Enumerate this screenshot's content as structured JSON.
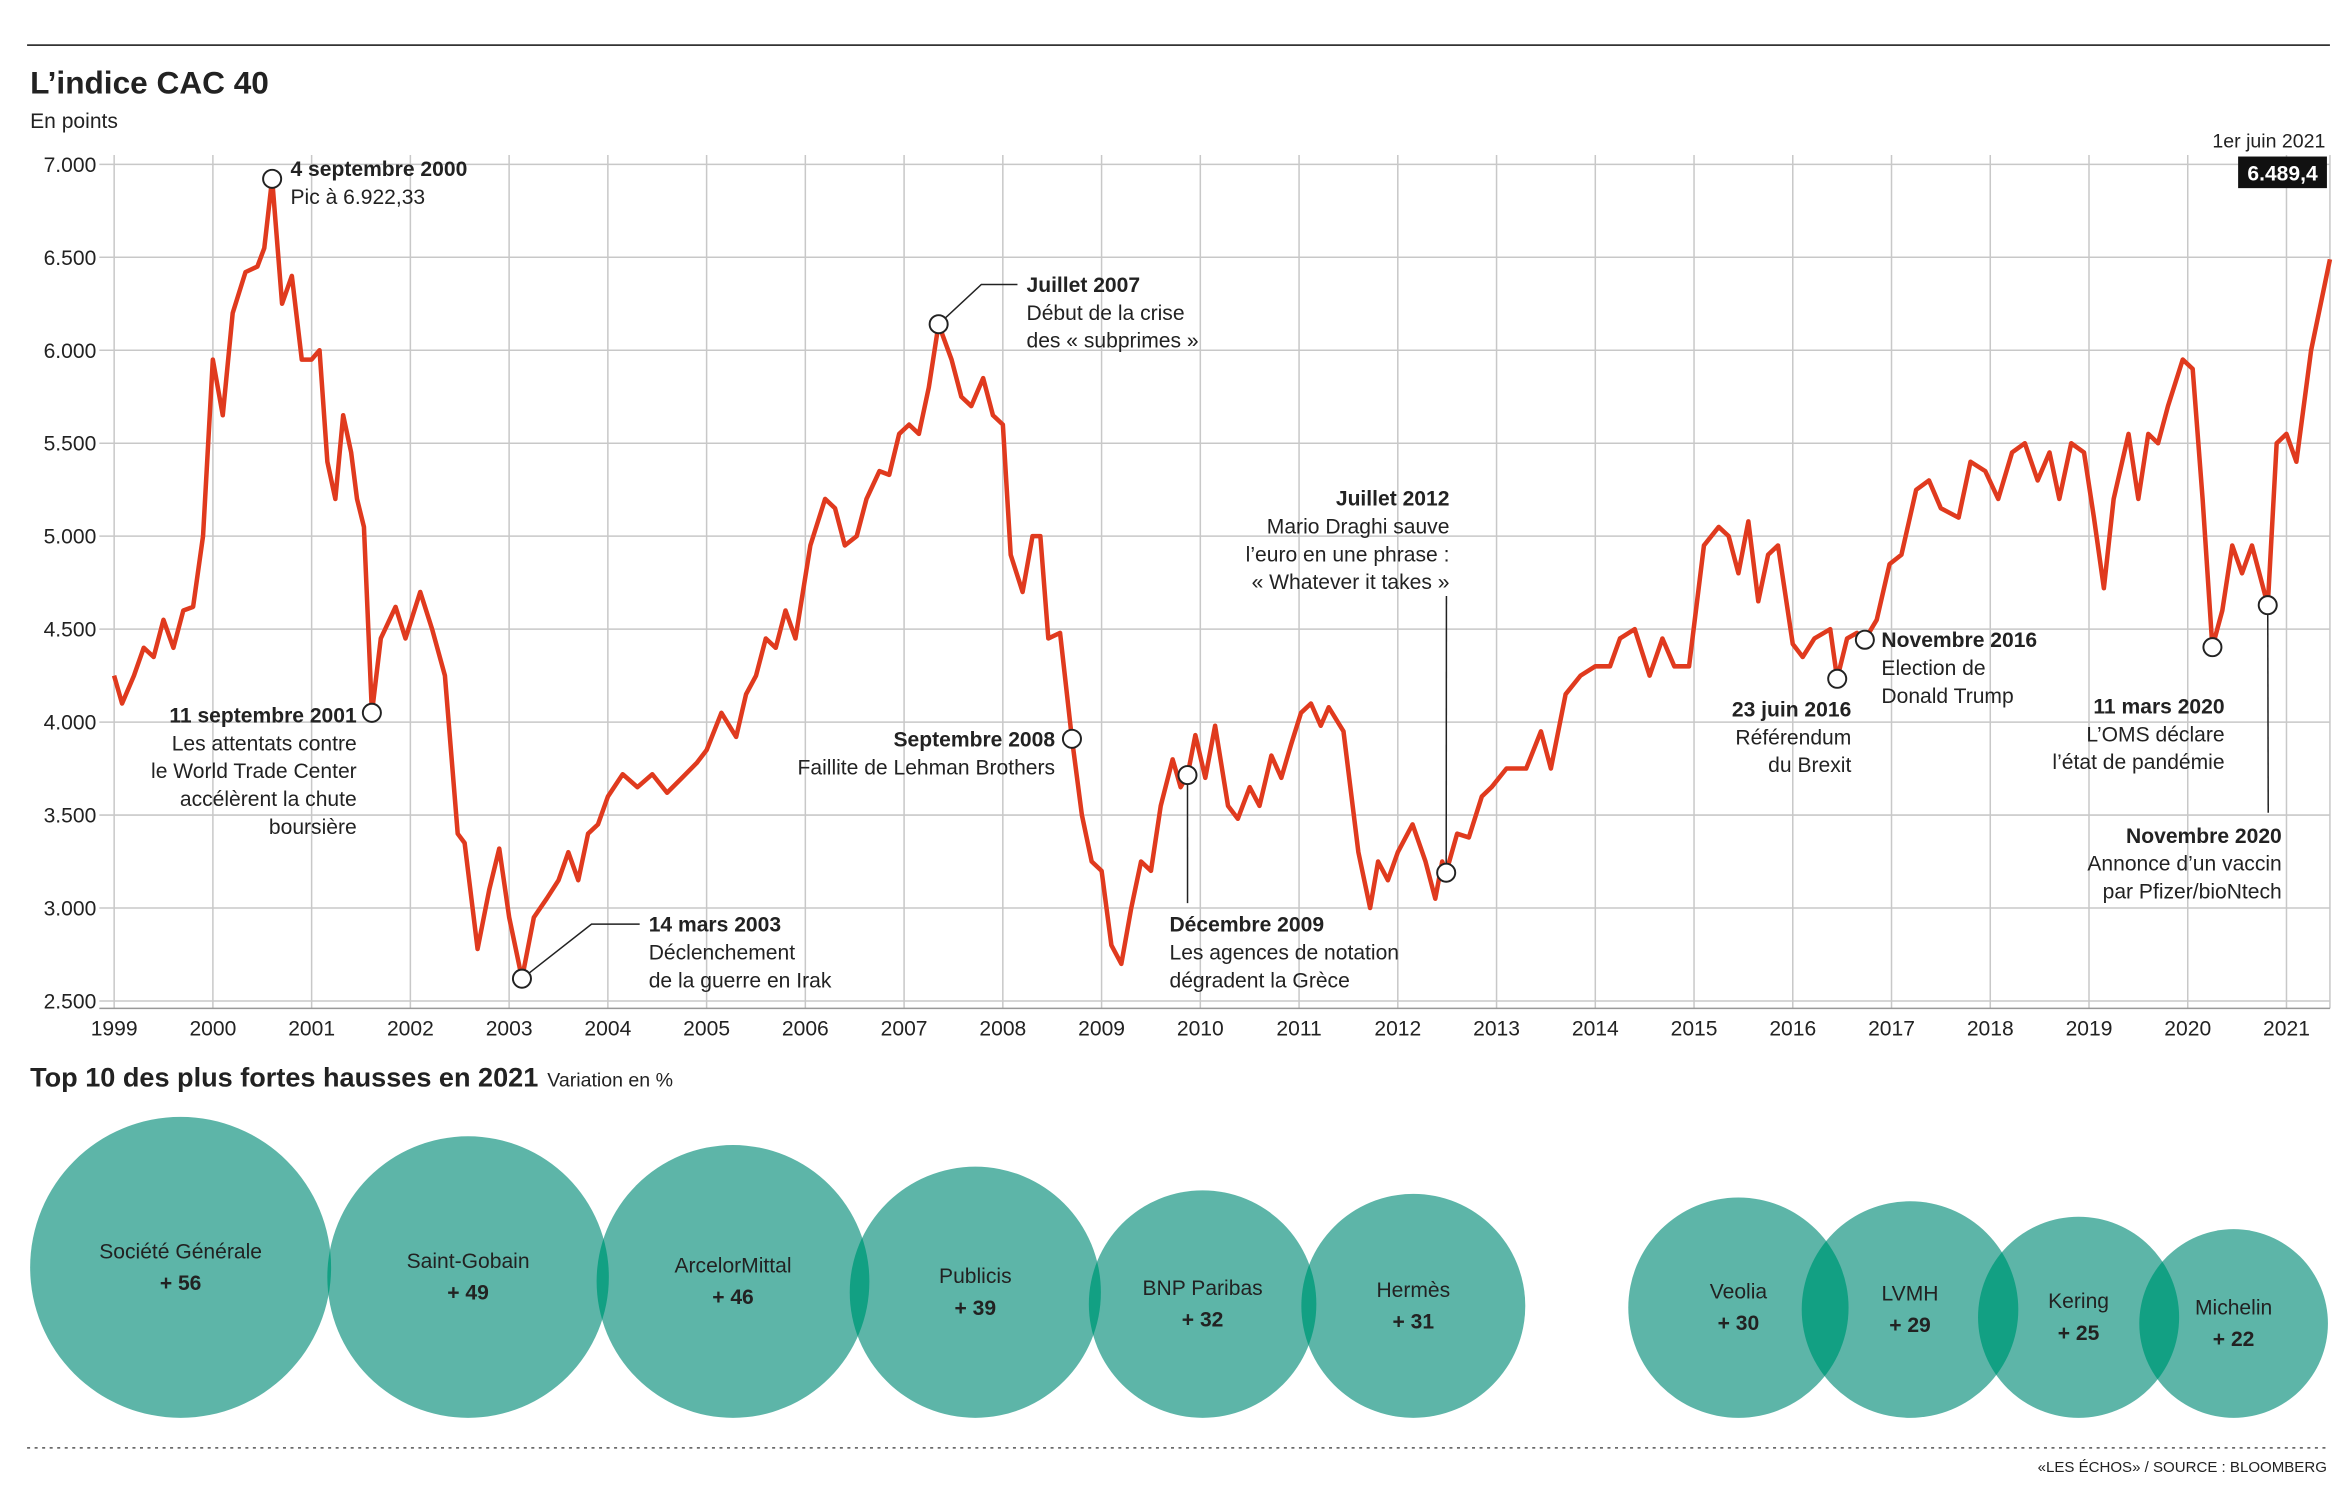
{
  "chart_data": [
    {
      "type": "line",
      "title": "L’indice CAC 40",
      "subtitle": "En points",
      "color": "#e03a1e",
      "grid": true,
      "x": [
        1999.0,
        1999.08,
        1999.2,
        1999.3,
        1999.4,
        1999.5,
        1999.6,
        1999.7,
        1999.8,
        1999.9,
        2000.0,
        2000.1,
        2000.2,
        2000.33,
        2000.45,
        2000.52,
        2000.6,
        2000.7,
        2000.8,
        2000.9,
        2001.0,
        2001.08,
        2001.16,
        2001.24,
        2001.32,
        2001.4,
        2001.46,
        2001.53,
        2001.61,
        2001.7,
        2001.85,
        2001.95,
        2002.1,
        2002.22,
        2002.35,
        2002.48,
        2002.55,
        2002.68,
        2002.8,
        2002.9,
        2003.0,
        2003.13,
        2003.25,
        2003.38,
        2003.5,
        2003.6,
        2003.7,
        2003.8,
        2003.9,
        2004.0,
        2004.15,
        2004.3,
        2004.45,
        2004.6,
        2004.75,
        2004.9,
        2005.0,
        2005.15,
        2005.3,
        2005.4,
        2005.5,
        2005.6,
        2005.7,
        2005.8,
        2005.9,
        2006.05,
        2006.2,
        2006.3,
        2006.4,
        2006.52,
        2006.62,
        2006.75,
        2006.85,
        2006.95,
        2007.05,
        2007.15,
        2007.25,
        2007.35,
        2007.48,
        2007.58,
        2007.68,
        2007.8,
        2007.9,
        2008.0,
        2008.08,
        2008.2,
        2008.3,
        2008.38,
        2008.46,
        2008.58,
        2008.7,
        2008.8,
        2008.9,
        2009.0,
        2009.1,
        2009.2,
        2009.3,
        2009.4,
        2009.5,
        2009.6,
        2009.72,
        2009.8,
        2009.87,
        2009.95,
        2010.05,
        2010.15,
        2010.28,
        2010.38,
        2010.5,
        2010.6,
        2010.72,
        2010.82,
        2010.92,
        2011.02,
        2011.12,
        2011.22,
        2011.3,
        2011.45,
        2011.6,
        2011.72,
        2011.8,
        2011.9,
        2012.0,
        2012.15,
        2012.28,
        2012.38,
        2012.45,
        2012.49,
        2012.6,
        2012.72,
        2012.85,
        2012.95,
        2013.1,
        2013.3,
        2013.45,
        2013.55,
        2013.7,
        2013.85,
        2014.0,
        2014.15,
        2014.25,
        2014.4,
        2014.55,
        2014.68,
        2014.8,
        2014.95,
        2015.1,
        2015.25,
        2015.35,
        2015.45,
        2015.55,
        2015.65,
        2015.75,
        2015.85,
        2016.0,
        2016.1,
        2016.22,
        2016.38,
        2016.45,
        2016.55,
        2016.65,
        2016.73,
        2016.85,
        2016.98,
        2017.1,
        2017.25,
        2017.38,
        2017.5,
        2017.68,
        2017.8,
        2017.95,
        2018.08,
        2018.22,
        2018.35,
        2018.48,
        2018.6,
        2018.7,
        2018.82,
        2018.95,
        2019.05,
        2019.15,
        2019.25,
        2019.4,
        2019.5,
        2019.6,
        2019.7,
        2019.8,
        2019.95,
        2020.05,
        2020.15,
        2020.25,
        2020.35,
        2020.45,
        2020.55,
        2020.65,
        2020.81,
        2020.9,
        2021.0,
        2021.1,
        2021.25,
        2021.44
      ],
      "values": [
        4250,
        4100,
        4250,
        4400,
        4350,
        4550,
        4400,
        4600,
        4620,
        5000,
        5950,
        5650,
        6200,
        6420,
        6450,
        6550,
        6922,
        6250,
        6400,
        5950,
        5950,
        6000,
        5400,
        5200,
        5650,
        5450,
        5200,
        5050,
        4050,
        4450,
        4620,
        4450,
        4700,
        4500,
        4250,
        3400,
        3350,
        2780,
        3100,
        3320,
        2950,
        2620,
        2950,
        3050,
        3150,
        3300,
        3150,
        3400,
        3450,
        3600,
        3720,
        3650,
        3720,
        3620,
        3700,
        3780,
        3850,
        4050,
        3920,
        4150,
        4250,
        4450,
        4400,
        4600,
        4450,
        4950,
        5200,
        5150,
        4950,
        5000,
        5200,
        5350,
        5330,
        5550,
        5600,
        5550,
        5800,
        6140,
        5950,
        5750,
        5700,
        5850,
        5650,
        5600,
        4900,
        4700,
        5000,
        5000,
        4450,
        4480,
        3910,
        3500,
        3250,
        3200,
        2800,
        2700,
        3000,
        3250,
        3200,
        3550,
        3800,
        3650,
        3715,
        3930,
        3700,
        3980,
        3550,
        3480,
        3650,
        3550,
        3820,
        3700,
        3880,
        4050,
        4100,
        3980,
        4080,
        3950,
        3300,
        3000,
        3250,
        3150,
        3300,
        3450,
        3250,
        3050,
        3250,
        3190,
        3400,
        3380,
        3600,
        3650,
        3750,
        3750,
        3950,
        3750,
        4150,
        4250,
        4300,
        4300,
        4450,
        4500,
        4250,
        4450,
        4300,
        4300,
        4950,
        5050,
        5000,
        4800,
        5080,
        4650,
        4900,
        4950,
        4420,
        4350,
        4450,
        4500,
        4233,
        4450,
        4480,
        4443,
        4550,
        4850,
        4900,
        5250,
        5300,
        5150,
        5100,
        5400,
        5350,
        5200,
        5450,
        5500,
        5300,
        5450,
        5200,
        5500,
        5450,
        5100,
        4720,
        5200,
        5550,
        5200,
        5550,
        5500,
        5700,
        5950,
        5900,
        5200,
        4403,
        4600,
        4950,
        4800,
        4950,
        4629,
        5500,
        5550,
        5400,
        6000,
        6489.4
      ],
      "xlim": [
        1998.85,
        2021.44
      ],
      "xticks": [
        1999,
        2000,
        2001,
        2002,
        2003,
        2004,
        2005,
        2006,
        2007,
        2008,
        2009,
        2010,
        2011,
        2012,
        2013,
        2014,
        2015,
        2016,
        2017,
        2018,
        2019,
        2020,
        2021
      ],
      "ylim": [
        2460,
        7050
      ],
      "yticks": [
        {
          "value": 2500,
          "label": "2.500"
        },
        {
          "value": 3000,
          "label": "3.000"
        },
        {
          "value": 3500,
          "label": "3.500"
        },
        {
          "value": 4000,
          "label": "4.000"
        },
        {
          "value": 4500,
          "label": "4.500"
        },
        {
          "value": 5000,
          "label": "5.000"
        },
        {
          "value": 5500,
          "label": "5.500"
        },
        {
          "value": 6000,
          "label": "6.000"
        },
        {
          "value": 6500,
          "label": "6.500"
        },
        {
          "value": 7000,
          "label": "7.000"
        }
      ],
      "last_point": {
        "date": "1er juin 2021",
        "value_label": "6.489,4"
      },
      "annotations": [
        {
          "x": 2000.6,
          "title": "4 septembre 2000",
          "lines": [
            "Pic à 6.922,33"
          ]
        },
        {
          "x": 2001.61,
          "title": "11 septembre 2001",
          "lines": [
            "Les attentats contre",
            "le World Trade Center",
            "accélèrent la chute",
            "boursière"
          ]
        },
        {
          "x": 2003.13,
          "title": "14 mars 2003",
          "lines": [
            "Déclenchement",
            "de la guerre en Irak"
          ]
        },
        {
          "x": 2007.35,
          "title": "Juillet 2007",
          "lines": [
            "Début de la crise",
            "des « subprimes »"
          ]
        },
        {
          "x": 2008.7,
          "title": "Septembre 2008",
          "lines": [
            "Faillite de Lehman Brothers"
          ]
        },
        {
          "x": 2009.87,
          "title": "Décembre 2009",
          "lines": [
            "Les agences de notation",
            "dégradent la Grèce"
          ]
        },
        {
          "x": 2012.49,
          "title": "Juillet 2012",
          "lines": [
            "Mario Draghi sauve",
            "l’euro en une phrase :",
            "« Whatever it takes »"
          ]
        },
        {
          "x": 2016.45,
          "title": "23 juin 2016",
          "lines": [
            "Référendum",
            "du Brexit"
          ]
        },
        {
          "x": 2016.73,
          "title": "Novembre 2016",
          "lines": [
            "Election de",
            "Donald Trump"
          ]
        },
        {
          "x": 2020.25,
          "title": "11 mars 2020",
          "lines": [
            "L’OMS déclare",
            "l’état de pandémie"
          ]
        },
        {
          "x": 2020.81,
          "title": "Novembre 2020",
          "lines": [
            "Annonce d’un vaccin",
            "par Pfizer/bioNtech"
          ]
        }
      ]
    },
    {
      "type": "bubble",
      "title": "Top 10 des plus fortes hausses en 2021",
      "subtitle": "Variation en %",
      "color": "#5db5a8",
      "overlap_color": "#12a083",
      "categories": [
        "Société Générale",
        "Saint-Gobain",
        "ArcelorMittal",
        "Publicis",
        "BNP Paribas",
        "Hermès",
        "Veolia",
        "LVMH",
        "Kering",
        "Michelin"
      ],
      "values": [
        56,
        49,
        46,
        39,
        32,
        31,
        30,
        29,
        25,
        22
      ],
      "value_labels": [
        "+ 56",
        "+ 49",
        "+ 46",
        "+ 39",
        "+ 32",
        "+ 31",
        "+ 30",
        "+ 29",
        "+ 25",
        "+ 22"
      ]
    }
  ],
  "source": "«LES ÉCHOS» / SOURCE : BLOOMBERG"
}
